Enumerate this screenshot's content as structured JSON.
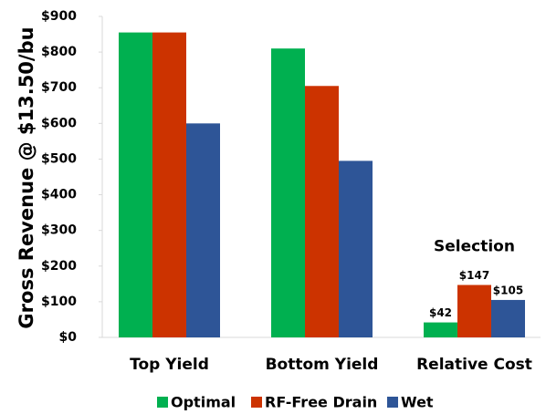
{
  "chart_data": {
    "type": "bar",
    "y_label": "Gross Revenue @ $13.50/bu",
    "annotation": "Selection",
    "categories": [
      "Top Yield",
      "Bottom Yield",
      "Relative Cost"
    ],
    "series": [
      {
        "name": "Optimal",
        "color": "#00b050",
        "values": [
          855,
          810,
          42
        ],
        "value_labels": [
          null,
          null,
          "$42"
        ]
      },
      {
        "name": "RF-Free Drain",
        "color": "#cc3300",
        "values": [
          855,
          705,
          147
        ],
        "value_labels": [
          null,
          null,
          "$147"
        ]
      },
      {
        "name": "Wet",
        "color": "#2e5597",
        "values": [
          600,
          495,
          105
        ],
        "value_labels": [
          null,
          null,
          "$105"
        ]
      }
    ],
    "ylim": [
      0,
      900
    ],
    "yticks": [
      {
        "value": 0,
        "label": "$0"
      },
      {
        "value": 100,
        "label": "$100"
      },
      {
        "value": 200,
        "label": "$200"
      },
      {
        "value": 300,
        "label": "$300"
      },
      {
        "value": 400,
        "label": "$400"
      },
      {
        "value": 500,
        "label": "$500"
      },
      {
        "value": 600,
        "label": "$600"
      },
      {
        "value": 700,
        "label": "$700"
      },
      {
        "value": 800,
        "label": "$800"
      },
      {
        "value": 900,
        "label": "$900"
      }
    ],
    "grid": false,
    "legend": "bottom"
  }
}
